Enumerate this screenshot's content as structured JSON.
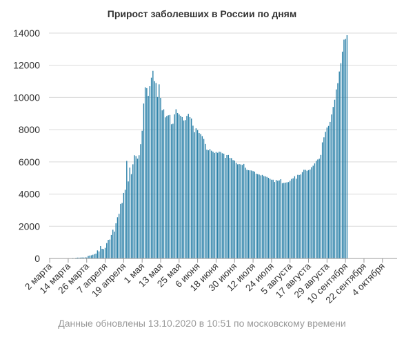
{
  "chart_data": {
    "type": "bar",
    "title": "Прирост заболевших в России по дням",
    "xlabel": "",
    "ylabel": "",
    "ylim": [
      0,
      14000
    ],
    "y_ticks": [
      "0",
      "2000",
      "4000",
      "6000",
      "8000",
      "10000",
      "12000",
      "14000"
    ],
    "grid": true,
    "legend": "none",
    "bar_color": "#2a80a8",
    "x_tick_labels": [
      "2 марта",
      "14 марта",
      "26 марта",
      "7 апреля",
      "19 апреля",
      "1 мая",
      "13 мая",
      "25 мая",
      "6 июня",
      "18 июня",
      "30 июня",
      "12 июля",
      "24 июля",
      "5 августа",
      "17 августа",
      "29 августа",
      "10 сентября",
      "22 сентября",
      "4 октября"
    ],
    "x_start": "2020-03-02",
    "x_end": "2020-10-13",
    "values": [
      0,
      0,
      1,
      2,
      3,
      1,
      4,
      0,
      7,
      3,
      8,
      5,
      6,
      14,
      11,
      33,
      8,
      43,
      52,
      54,
      53,
      61,
      57,
      71,
      57,
      163,
      182,
      196,
      228,
      270,
      302,
      500,
      440,
      771,
      601,
      582,
      658,
      954,
      1154,
      1175,
      1459,
      1786,
      1667,
      2186,
      2558,
      2774,
      3388,
      3448,
      4070,
      4268,
      6060,
      4785,
      5642,
      5236,
      5849,
      6411,
      6361,
      6198,
      6411,
      7099,
      7933,
      9623,
      10633,
      10581,
      10102,
      10699,
      11231,
      11656,
      11012,
      10899,
      10028,
      10817,
      9974,
      9200,
      9263,
      8764,
      8849,
      8894,
      8915,
      8338,
      8371,
      8952,
      9268,
      9035,
      8946,
      8863,
      8779,
      8572,
      8595,
      8855,
      8985,
      8779,
      8694,
      8248,
      7843,
      8085,
      7972,
      7790,
      7728,
      7600,
      7425,
      7113,
      6760,
      6719,
      6791,
      6693,
      6632,
      6556,
      6611,
      6562,
      6635,
      6615,
      6537,
      6509,
      6248,
      6422,
      6429,
      6248,
      6234,
      6109,
      6080,
      5940,
      5848,
      5862,
      5842,
      5811,
      5871,
      5635,
      5509,
      5482,
      5475,
      5462,
      5427,
      5394,
      5267,
      5241,
      5212,
      5159,
      5189,
      5118,
      5102,
      5065,
      5010,
      4945,
      4892,
      4890,
      4748,
      4870,
      4828,
      4852,
      4921,
      4676,
      4696,
      4711,
      4729,
      4744,
      4829,
      4941,
      4980,
      5110,
      4952,
      5195,
      5185,
      5218,
      5363,
      5509,
      5504,
      5449,
      5488,
      5529,
      5670,
      5762,
      5905,
      6065,
      6148,
      6196,
      6431,
      7212,
      7523,
      7867,
      8135,
      8232,
      8481,
      8945,
      9412,
      9859,
      10499,
      10888,
      11615,
      12126,
      12846,
      13592,
      13634,
      13868
    ]
  },
  "footnote": "Данные обновлены 13.10.2020 в 10:51 по московскому времени"
}
